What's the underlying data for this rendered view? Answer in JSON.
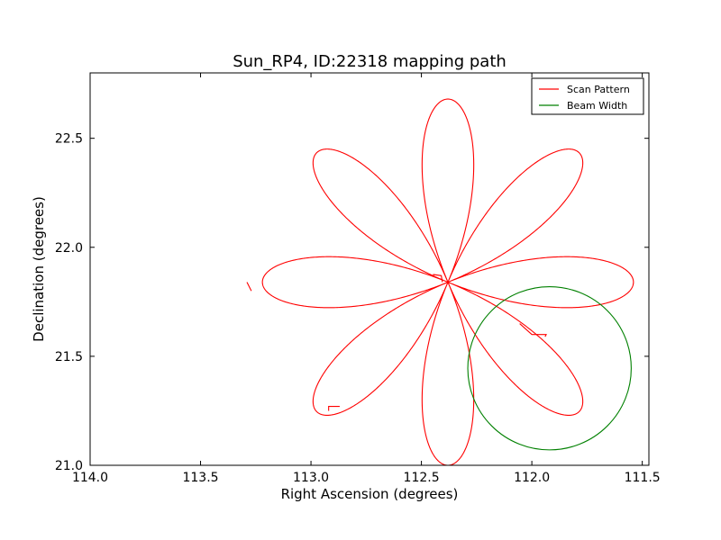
{
  "chart_data": {
    "type": "line",
    "title": "Sun_RP4, ID:22318 mapping path",
    "xlabel": "Right Ascension (degrees)",
    "ylabel": "Declination (degrees)",
    "xlim": [
      114.0,
      111.47
    ],
    "ylim": [
      21.0,
      22.8
    ],
    "x_inverted": true,
    "xticks": [
      114.0,
      113.5,
      113.0,
      112.5,
      112.0,
      111.5
    ],
    "xtick_labels": [
      "114.0",
      "113.5",
      "113.0",
      "112.5",
      "112.0",
      "111.5"
    ],
    "yticks": [
      21.0,
      21.5,
      22.0,
      22.5
    ],
    "ytick_labels": [
      "21.0",
      "21.5",
      "22.0",
      "22.5"
    ],
    "grid": false,
    "legend": "top-right",
    "rose": {
      "center_ra": 112.38,
      "center_dec": 21.84,
      "petals": 8,
      "petal_length_deg": 0.84
    },
    "series": [
      {
        "name": "Scan Pattern",
        "color": "#ff0000",
        "style": "rose-curve",
        "glitches": [
          {
            "ra": [
              112.405,
              112.41,
              112.445,
              112.445
            ],
            "dec": [
              21.84,
              21.87,
              21.875,
              21.87
            ]
          },
          {
            "ra": [
              112.055,
              112.0,
              111.935,
              111.94
            ],
            "dec": [
              21.65,
              21.6,
              21.6,
              21.59
            ]
          },
          {
            "ra": [
              112.92,
              112.92,
              112.87
            ],
            "dec": [
              21.25,
              21.27,
              21.27
            ]
          },
          {
            "ra": [
              113.29,
              113.27
            ],
            "dec": [
              21.84,
              21.8
            ]
          }
        ]
      },
      {
        "name": "Beam Width",
        "color": "#008000",
        "style": "circle",
        "center_ra": 111.92,
        "center_dec": 21.445,
        "radius_deg": 0.37
      }
    ]
  }
}
